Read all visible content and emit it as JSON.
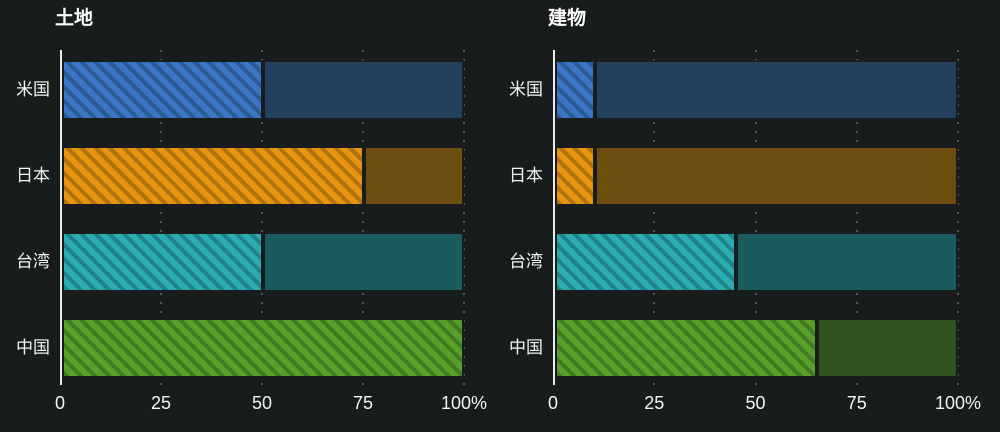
{
  "background": "#181C1D",
  "axis": {
    "line_color": "#E9EBEC",
    "grid_dot_color": "#54585C",
    "text_color": "#F3F4F5",
    "tick_labels": [
      "0",
      "25",
      "50",
      "75",
      "100%"
    ],
    "tick_values": [
      0,
      25,
      50,
      75,
      100
    ]
  },
  "palette": [
    {
      "category": "米国",
      "hatch_base": "#3A76C4",
      "solid": "#24405F"
    },
    {
      "category": "日本",
      "hatch_base": "#E8940F",
      "solid": "#6B4E10"
    },
    {
      "category": "台湾",
      "hatch_base": "#2AACB1",
      "solid": "#1A5C5D"
    },
    {
      "category": "中国",
      "hatch_base": "#57A02A",
      "solid": "#30521C"
    }
  ],
  "chart_data": {
    "type": "bar",
    "orientation": "horizontal",
    "stacked": true,
    "grid": "dotted-vertical",
    "legend": "none",
    "xlim": [
      0,
      100
    ],
    "xticks": [
      "0",
      "25",
      "50",
      "75",
      "100%"
    ],
    "categories": [
      "米国",
      "日本",
      "台湾",
      "中国"
    ],
    "charts": [
      {
        "title": "土地",
        "series": [
          {
            "name": "hatched",
            "values": [
              50,
              75,
              50,
              100
            ]
          },
          {
            "name": "solid",
            "values": [
              50,
              25,
              50,
              0
            ]
          }
        ]
      },
      {
        "title": "建物",
        "series": [
          {
            "name": "hatched",
            "values": [
              10,
              10,
              45,
              65
            ]
          },
          {
            "name": "solid",
            "values": [
              90,
              90,
              55,
              35
            ]
          }
        ]
      }
    ]
  }
}
